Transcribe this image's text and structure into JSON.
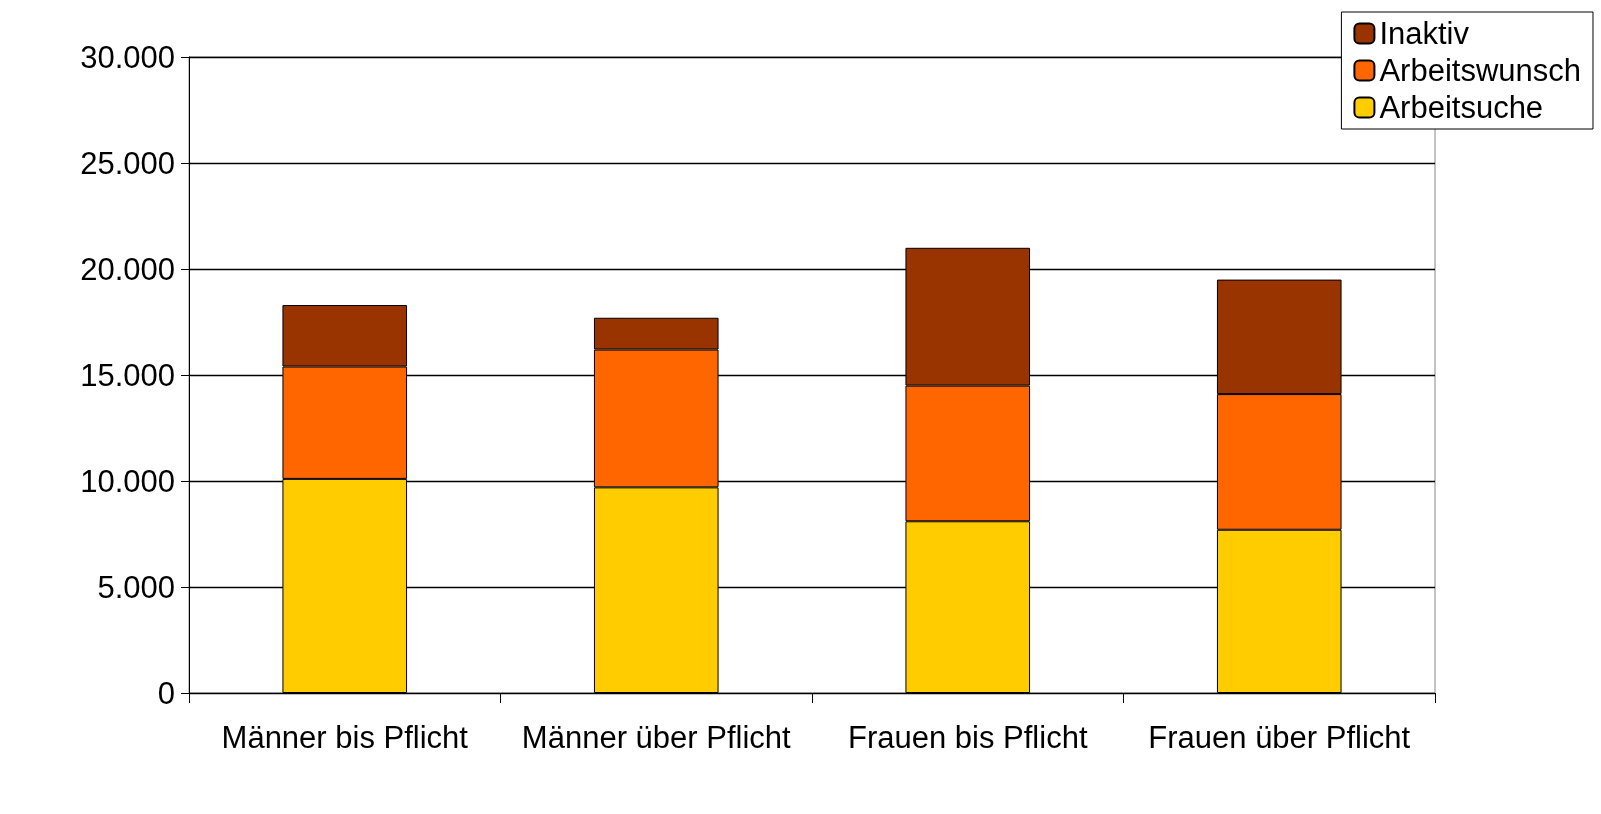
{
  "chart_data": {
    "type": "bar",
    "stacked": true,
    "categories": [
      "Männer bis Pflicht",
      "Männer über Pflicht",
      "Frauen bis Pflicht",
      "Frauen über Pflicht"
    ],
    "series": [
      {
        "name": "Arbeitsuche",
        "color": "#ffcc00",
        "values": [
          10100,
          9700,
          8100,
          7700
        ]
      },
      {
        "name": "Arbeitswunsch",
        "color": "#ff6600",
        "values": [
          5300,
          6500,
          6400,
          6400
        ]
      },
      {
        "name": "Inaktiv",
        "color": "#993300",
        "values": [
          2900,
          1500,
          6500,
          5400
        ]
      }
    ],
    "ylim": [
      0,
      30000
    ],
    "yticks": [
      {
        "value": 0,
        "label": "0"
      },
      {
        "value": 5000,
        "label": "5.000"
      },
      {
        "value": 10000,
        "label": "10.000"
      },
      {
        "value": 15000,
        "label": "15.000"
      },
      {
        "value": 20000,
        "label": "20.000"
      },
      {
        "value": 25000,
        "label": "25.000"
      },
      {
        "value": 30000,
        "label": "30.000"
      }
    ],
    "grid": "y",
    "legend": "top right"
  }
}
